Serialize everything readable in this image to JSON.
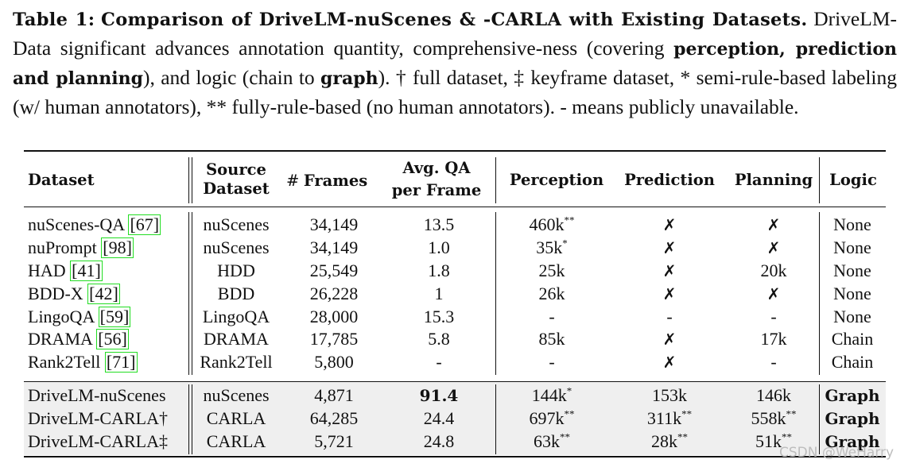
{
  "caption": {
    "label": "Table 1:",
    "title_bold": "Comparison of DriveLM-nuScenes & -CARLA with Existing Datasets.",
    "text_1": " DriveLM-Data significant advances annotation quantity, comprehensive-ness (covering ",
    "bold_1": "perception, prediction and planning",
    "text_2": "), and logic (chain to ",
    "bold_2": "graph",
    "text_3": "). † full dataset, ‡ keyframe dataset, * semi-rule-based labeling (w/ human annotators), ** fully-rule-based (no human annotators). - means publicly unavailable."
  },
  "headers": {
    "dataset": "Dataset",
    "source_1": "Source",
    "source_2": "Dataset",
    "frames_hash": "#",
    "frames": "Frames",
    "avgqa_1": "Avg. QA",
    "avgqa_2": "per Frame",
    "perception": "Perception",
    "prediction": "Prediction",
    "planning": "Planning",
    "logic": "Logic"
  },
  "rows": [
    {
      "name": "nuScenes-QA",
      "ref": "[67]",
      "source": "nuScenes",
      "frames": "34,149",
      "avgqa": "13.5",
      "perception": "460k",
      "perception_sup": "**",
      "prediction": "✗",
      "planning": "✗",
      "logic": "None"
    },
    {
      "name": "nuPrompt",
      "ref": "[98]",
      "source": "nuScenes",
      "frames": "34,149",
      "avgqa": "1.0",
      "perception": "35k",
      "perception_sup": "*",
      "prediction": "✗",
      "planning": "✗",
      "logic": "None"
    },
    {
      "name": "HAD",
      "ref": "[41]",
      "source": "HDD",
      "frames": "25,549",
      "avgqa": "1.8",
      "perception": "25k",
      "perception_sup": "",
      "prediction": "✗",
      "planning": "20k",
      "logic": "None"
    },
    {
      "name": "BDD-X",
      "ref": "[42]",
      "source": "BDD",
      "frames": "26,228",
      "avgqa": "1",
      "perception": "26k",
      "perception_sup": "",
      "prediction": "✗",
      "planning": "✗",
      "logic": "None"
    },
    {
      "name": "LingoQA",
      "ref": "[59]",
      "source": "LingoQA",
      "frames": "28,000",
      "avgqa": "15.3",
      "perception": "-",
      "perception_sup": "",
      "prediction": "-",
      "planning": "-",
      "logic": "None"
    },
    {
      "name": "DRAMA",
      "ref": "[56]",
      "source": "DRAMA",
      "frames": "17,785",
      "avgqa": "5.8",
      "perception": "85k",
      "perception_sup": "",
      "prediction": "✗",
      "planning": "17k",
      "logic": "Chain"
    },
    {
      "name": "Rank2Tell",
      "ref": "[71]",
      "source": "Rank2Tell",
      "frames": "5,800",
      "avgqa": "-",
      "perception": "-",
      "perception_sup": "",
      "prediction": "✗",
      "planning": "-",
      "logic": "Chain"
    }
  ],
  "ours": [
    {
      "name": "DriveLM-nuScenes",
      "source": "nuScenes",
      "frames": "4,871",
      "avgqa": "91.4",
      "perception": "144k",
      "perception_sup": "*",
      "prediction": "153k",
      "prediction_sup": "",
      "planning": "146k",
      "planning_sup": "",
      "logic": "Graph"
    },
    {
      "name": "DriveLM-CARLA†",
      "source": "CARLA",
      "frames": "64,285",
      "avgqa": "24.4",
      "perception": "697k",
      "perception_sup": "**",
      "prediction": "311k",
      "prediction_sup": "**",
      "planning": "558k",
      "planning_sup": "**",
      "logic": "Graph"
    },
    {
      "name": "DriveLM-CARLA‡",
      "source": "CARLA",
      "frames": "5,721",
      "avgqa": "24.8",
      "perception": "63k",
      "perception_sup": "**",
      "prediction": "28k",
      "prediction_sup": "**",
      "planning": "51k",
      "planning_sup": "**",
      "logic": "Graph"
    }
  ],
  "watermark": "CSDN @WeHarry"
}
